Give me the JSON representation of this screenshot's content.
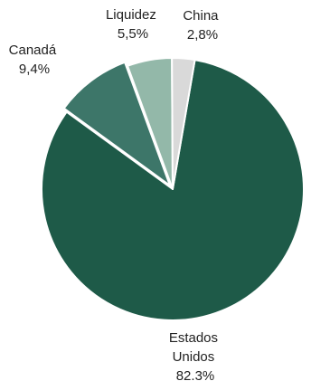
{
  "chart_data": {
    "type": "pie",
    "slices": [
      {
        "label": "Estados Unidos",
        "value": 82.3,
        "display": [
          "Estados",
          "Unidos",
          "82.3%"
        ],
        "color": "#1e5a48"
      },
      {
        "label": "Canadá",
        "value": 9.4,
        "display": [
          "Canadá",
          "9,4%"
        ],
        "color": "#3d7669"
      },
      {
        "label": "Liquidez",
        "value": 5.5,
        "display": [
          "Liquidez",
          "5,5%"
        ],
        "color": "#93b8a9"
      },
      {
        "label": "China",
        "value": 2.8,
        "display": [
          "China",
          "2,8%"
        ],
        "color": "#d9d9d9"
      }
    ],
    "start_angle_deg": 9.75,
    "direction": "clockwise",
    "slice_border_color": "#ffffff",
    "exploded_slice": "Canadá"
  }
}
